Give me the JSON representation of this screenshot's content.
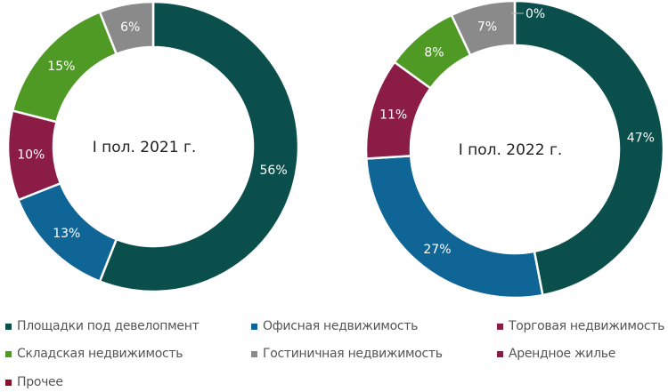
{
  "chart_data": [
    {
      "type": "donut",
      "center_label": "I пол. 2021 г.",
      "categories": [
        "Площадки под девелопмент",
        "Офисная недвижимость",
        "Торговая недвижимость",
        "Складская недвижимость",
        "Гостиничная недвижимость"
      ],
      "values": [
        56,
        13,
        10,
        15,
        6
      ],
      "labels": [
        "56%",
        "13%",
        "10%",
        "15%",
        "6%"
      ]
    },
    {
      "type": "donut",
      "center_label": "I пол. 2022 г.",
      "categories": [
        "Площадки под девелопмент",
        "Офисная недвижимость",
        "Торговая недвижимость",
        "Складская недвижимость",
        "Гостиничная недвижимость",
        "Арендное жилье"
      ],
      "values": [
        47,
        27,
        11,
        8,
        7,
        0
      ],
      "labels": [
        "47%",
        "27%",
        "11%",
        "8%",
        "7%",
        "0%"
      ]
    }
  ],
  "legend": [
    {
      "label": "Площадки под девелопмент",
      "color": "#0b4f4c"
    },
    {
      "label": "Офисная недвижимость",
      "color": "#0f6596"
    },
    {
      "label": "Торговая недвижимость",
      "color": "#8a1c46"
    },
    {
      "label": "Складская недвижимость",
      "color": "#4f9a24"
    },
    {
      "label": "Гостиничная недвижимость",
      "color": "#8a8a8a"
    },
    {
      "label": "Арендное жилье",
      "color": "#8a1c46"
    },
    {
      "label": "Прочее",
      "color": "#8b1128"
    }
  ]
}
